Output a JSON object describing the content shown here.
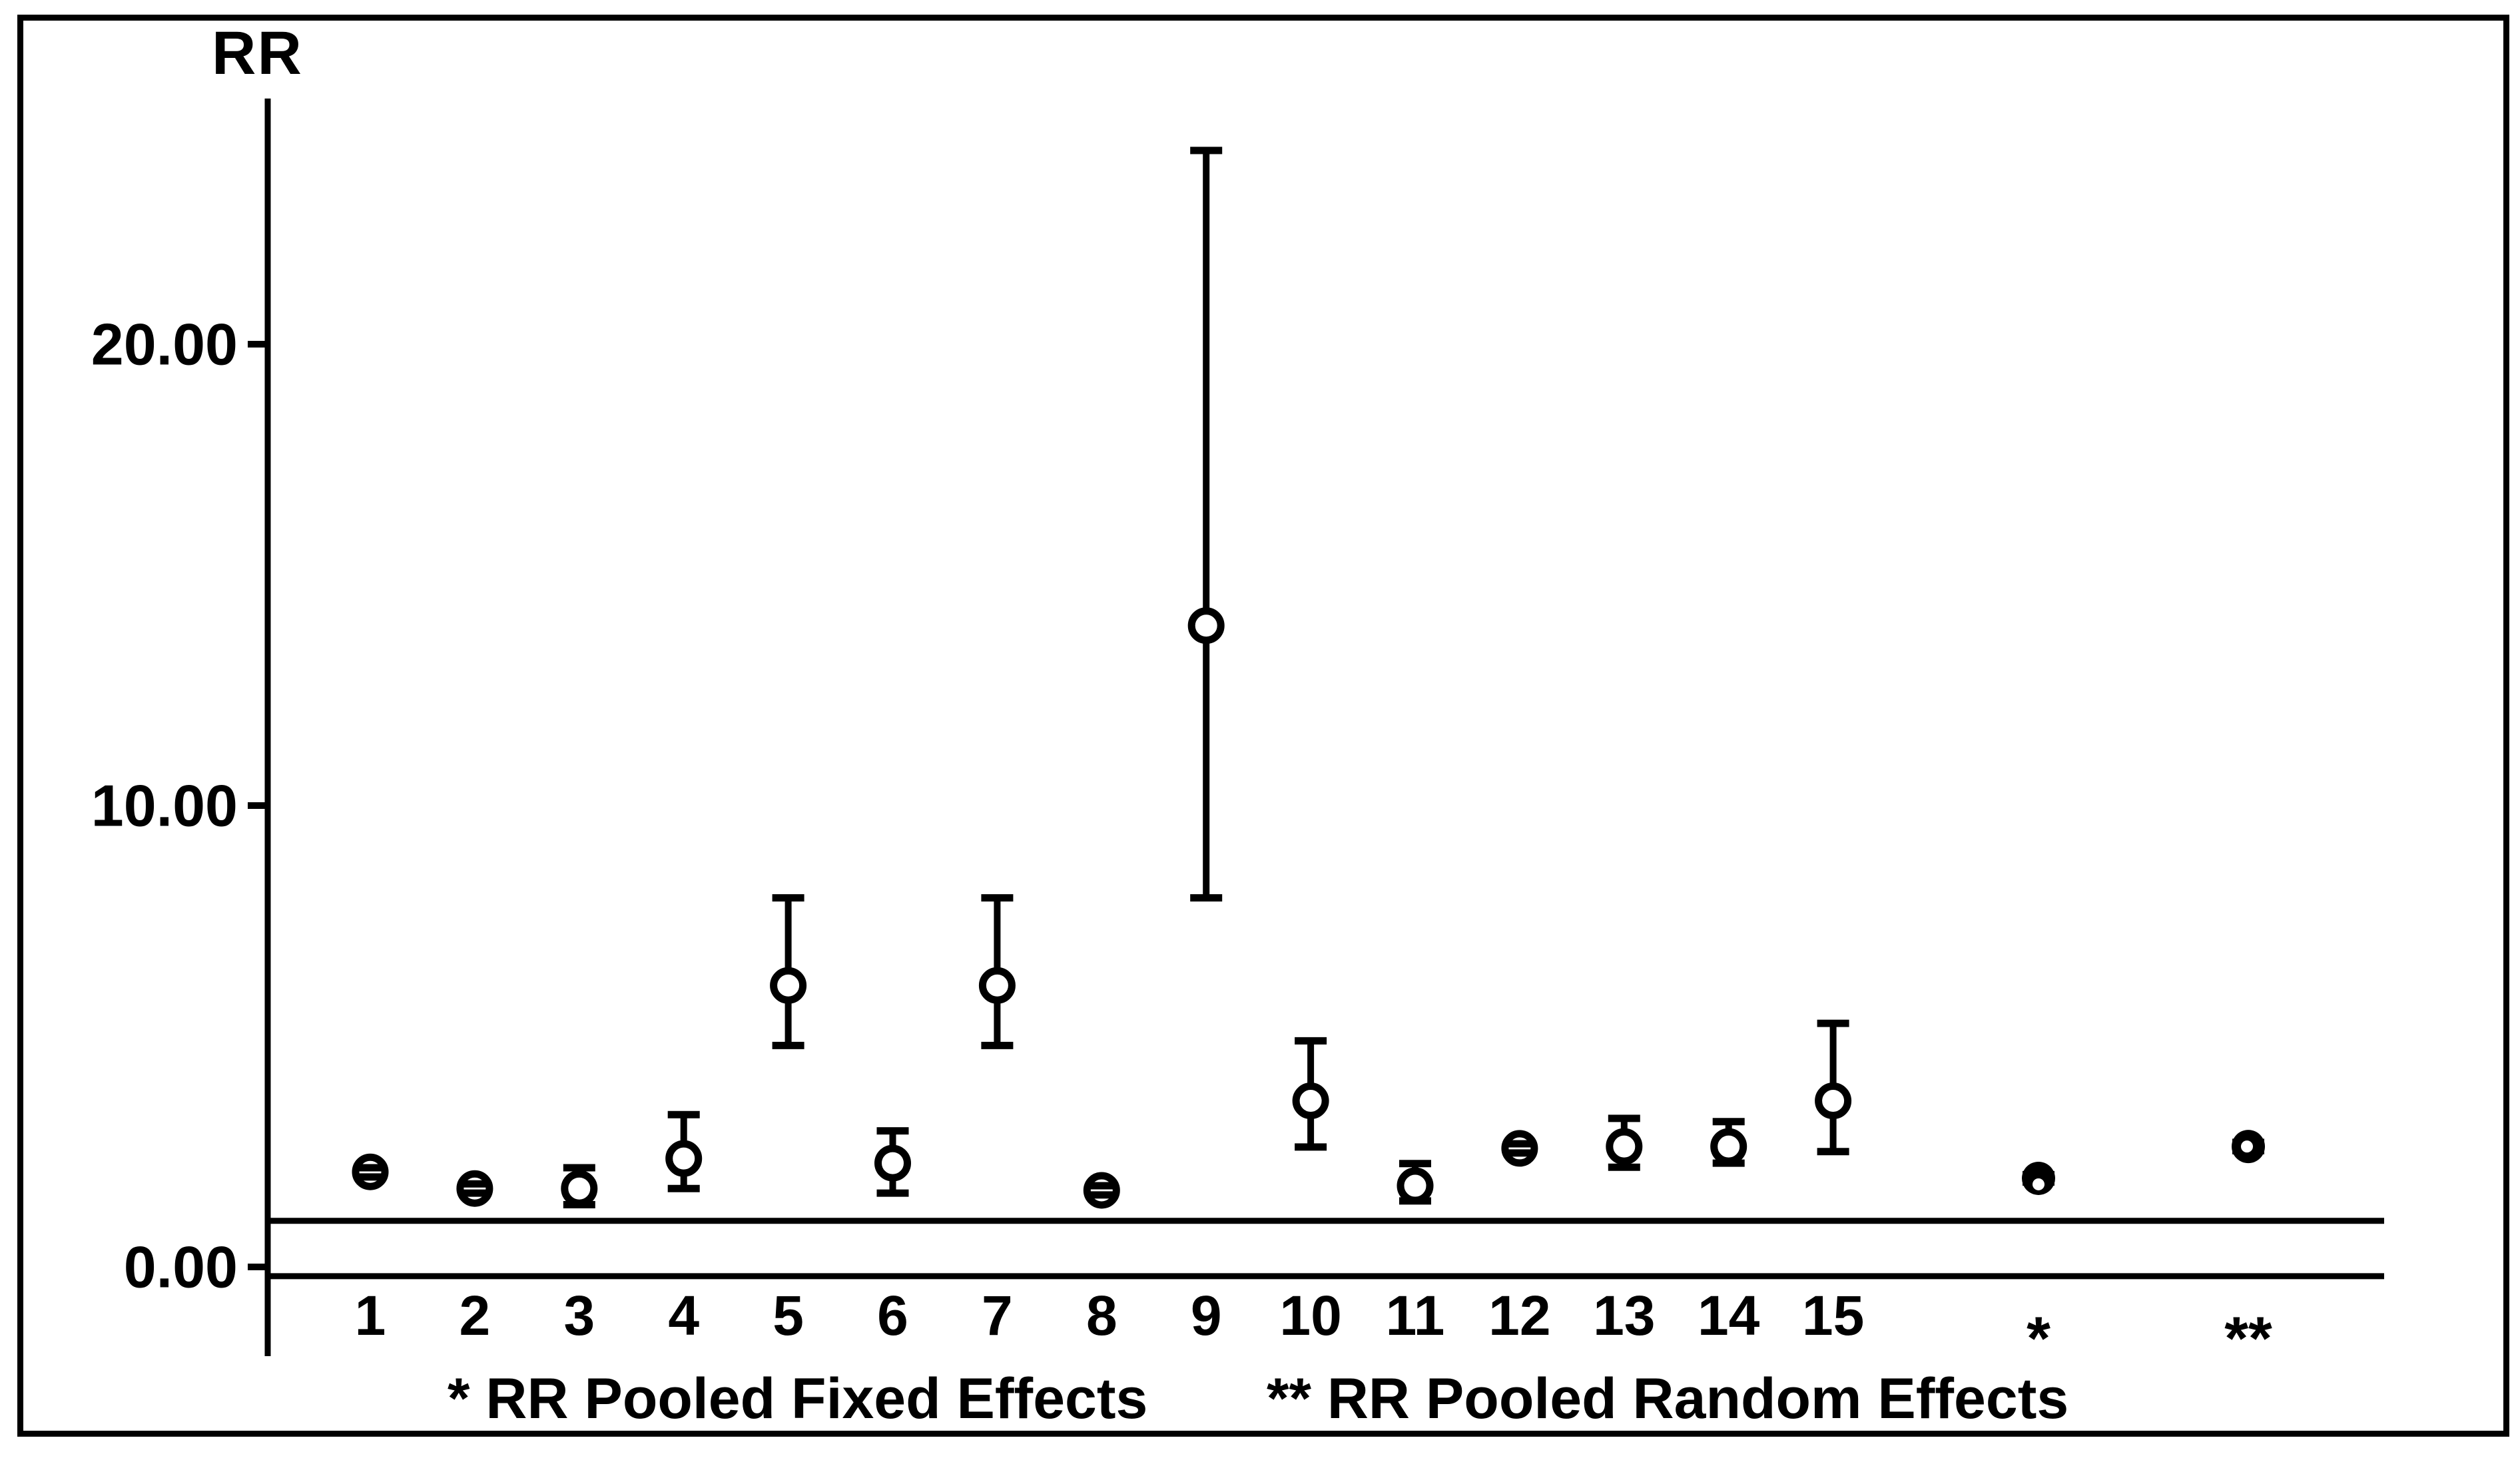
{
  "chart_data": {
    "type": "scatter",
    "subtype": "errorbar-forest-plot",
    "title": "",
    "ylabel": "RR",
    "xlabel": "",
    "ylim": [
      -0.5,
      25.3
    ],
    "grid": false,
    "legend": null,
    "yticks": [
      {
        "value": 0,
        "label": "0.00"
      },
      {
        "value": 10,
        "label": "10.00"
      },
      {
        "value": 20,
        "label": "20.00"
      }
    ],
    "reference_lines": [
      {
        "rr": 1.0,
        "role": "no-effect-line"
      },
      {
        "rr": -0.2,
        "role": "baseline"
      }
    ],
    "points": [
      {
        "label": "1",
        "rr": 2.06,
        "lo": 1.95,
        "hi": 2.15,
        "marker": "open"
      },
      {
        "label": "2",
        "rr": 1.7,
        "lo": 1.6,
        "hi": 1.8,
        "marker": "open"
      },
      {
        "label": "3",
        "rr": 1.7,
        "lo": 1.35,
        "hi": 2.15,
        "marker": "open"
      },
      {
        "label": "4",
        "rr": 2.35,
        "lo": 1.7,
        "hi": 3.3,
        "marker": "open"
      },
      {
        "label": "5",
        "rr": 6.1,
        "lo": 4.8,
        "hi": 8.0,
        "marker": "open"
      },
      {
        "label": "6",
        "rr": 2.25,
        "lo": 1.6,
        "hi": 2.95,
        "marker": "open"
      },
      {
        "label": "7",
        "rr": 6.1,
        "lo": 4.8,
        "hi": 8.0,
        "marker": "open"
      },
      {
        "label": "8",
        "rr": 1.66,
        "lo": 1.56,
        "hi": 1.76,
        "marker": "open"
      },
      {
        "label": "9",
        "rr": 13.9,
        "lo": 8.0,
        "hi": 24.2,
        "marker": "open"
      },
      {
        "label": "10",
        "rr": 3.6,
        "lo": 2.6,
        "hi": 4.9,
        "marker": "open"
      },
      {
        "label": "11",
        "rr": 1.76,
        "lo": 1.43,
        "hi": 2.24,
        "marker": "open"
      },
      {
        "label": "12",
        "rr": 2.57,
        "lo": 2.47,
        "hi": 2.67,
        "marker": "open"
      },
      {
        "label": "13",
        "rr": 2.61,
        "lo": 2.16,
        "hi": 3.22,
        "marker": "open"
      },
      {
        "label": "14",
        "rr": 2.61,
        "lo": 2.25,
        "hi": 3.15,
        "marker": "open"
      },
      {
        "label": "15",
        "rr": 3.6,
        "lo": 2.5,
        "hi": 5.28,
        "marker": "open"
      },
      {
        "label": "*",
        "rr": 1.92,
        "lo": 1.84,
        "hi": 2.0,
        "marker": "filled"
      },
      {
        "label": "**",
        "rr": 2.61,
        "lo": 2.52,
        "hi": 2.7,
        "marker": "filled"
      }
    ]
  },
  "footnotes": {
    "fixed": "* RR Pooled Fixed Effects",
    "random": "** RR Pooled Random Effects"
  },
  "colors": {
    "ink": "#000000",
    "background": "#ffffff"
  }
}
